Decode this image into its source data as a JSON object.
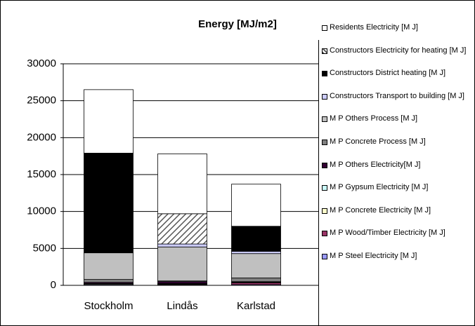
{
  "chart_data": {
    "type": "stacked_bar",
    "title": "Energy [MJ/m2]",
    "categories": [
      "Stockholm",
      "Lindås",
      "Karlstad"
    ],
    "ylim": [
      0,
      30000
    ],
    "yticks": [
      0,
      5000,
      10000,
      15000,
      20000,
      25000,
      30000
    ],
    "grid": true,
    "series": [
      {
        "name": "M P Steel Electricity [M J]",
        "color": "#9999ff",
        "values": [
          100,
          50,
          100
        ]
      },
      {
        "name": "M P Wood/Timber Electricity [M J]",
        "color": "#993366",
        "values": [
          0,
          100,
          250
        ]
      },
      {
        "name": "M P Concrete Electricity [M J]",
        "color": "#ffffcc",
        "values": [
          100,
          50,
          50
        ]
      },
      {
        "name": "M P Gypsum Electricity [M J]",
        "color": "#ccffff",
        "values": [
          50,
          50,
          50
        ]
      },
      {
        "name": "M P Others  Electricity[M J]",
        "color": "#330033",
        "values": [
          150,
          250,
          50
        ]
      },
      {
        "name": "M P Concrete Process [M J]",
        "color": "#808080",
        "values": [
          400,
          100,
          500
        ]
      },
      {
        "name": "M P Others Process [M J]",
        "color": "#c0c0c0",
        "values": [
          3600,
          4600,
          3300
        ]
      },
      {
        "name": "Constructors Transport to building [M J]",
        "color": "#ccccff",
        "values": [
          0,
          400,
          300
        ]
      },
      {
        "name": "Constructors District heating [M J]",
        "color": "#000000",
        "values": [
          13500,
          0,
          3400
        ]
      },
      {
        "name": "Constructors Electricity for heating [M J]",
        "color": "#808080",
        "pattern": "diagonal",
        "values": [
          0,
          4100,
          0
        ]
      },
      {
        "name": "Residents Electricity [M J]",
        "color": "#ffffff",
        "values": [
          8600,
          8100,
          5700
        ]
      }
    ]
  }
}
